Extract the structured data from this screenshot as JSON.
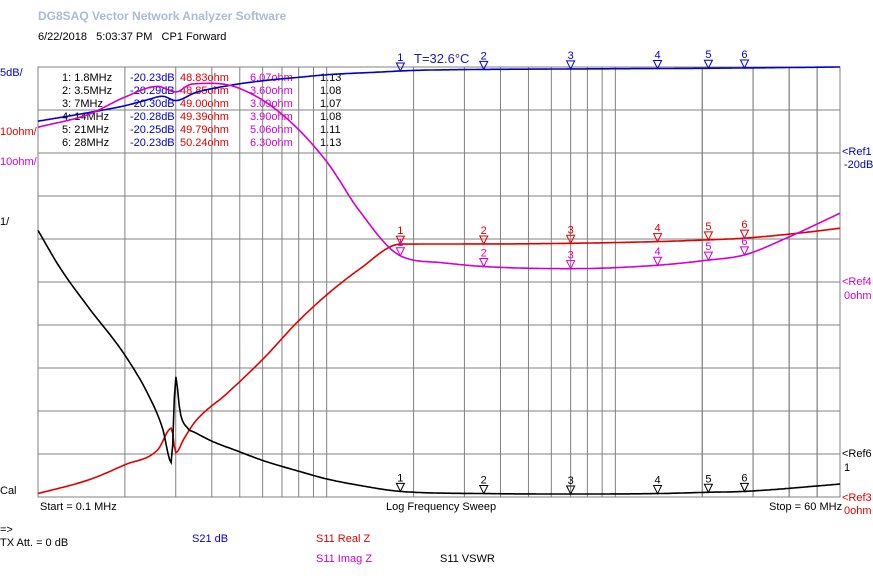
{
  "header": {
    "app_title": "DG8SAQ Vector Network Analyzer Software",
    "date": "6/22/2018",
    "time": "5:03:37 PM",
    "mode": "CP1 Forward",
    "temperature": "T=32.6°C"
  },
  "scale_labels": {
    "s21_scale": "5dB/",
    "real_scale": "10ohm/",
    "imag_scale": "10ohm/",
    "vswr_scale": "1/",
    "cal": "Cal"
  },
  "ref_labels": {
    "ref1": "<Ref1",
    "ref1_value": "-20dB",
    "ref4": "<Ref4",
    "ref4_value": "0ohm",
    "ref6": "<Ref6",
    "ref6_value": "1",
    "ref3": "<Ref3",
    "ref3_value": "0ohm"
  },
  "footer": {
    "start": "Start = 0.1 MHz",
    "sweep": "Log Frequency Sweep",
    "stop": "Stop = 60 MHz",
    "arrow": "=>",
    "tx_att": "TX Att.  = 0 dB",
    "legend_s21": "S21  dB",
    "legend_real": "S11  Real Z",
    "legend_imag": "S11  Imag Z",
    "legend_vswr": "S11  VSWR"
  },
  "colors": {
    "s21": "#0000c8",
    "real": "#e00000",
    "imag": "#d000d0",
    "vswr": "#000000",
    "grid": "#808080"
  },
  "markers": [
    {
      "label": "1: 1.8MHz",
      "s21": "-20.23dB",
      "real": "48.83ohm",
      "imag": "6.07ohm",
      "vswr": "1.13"
    },
    {
      "label": "2: 3.5MHz",
      "s21": "-20.29dB",
      "real": "48.85ohm",
      "imag": "3.60ohm",
      "vswr": "1.08"
    },
    {
      "label": "3: 7MHz",
      "s21": "-20.30dB",
      "real": "49.00ohm",
      "imag": "3.09ohm",
      "vswr": "1.07"
    },
    {
      "label": "4: 14MHz",
      "s21": "-20.28dB",
      "real": "49.39ohm",
      "imag": "3.90ohm",
      "vswr": "1.08"
    },
    {
      "label": "5: 21MHz",
      "s21": "-20.25dB",
      "real": "49.79ohm",
      "imag": "5.06ohm",
      "vswr": "1.11"
    },
    {
      "label": "6: 28MHz",
      "s21": "-20.23dB",
      "real": "50.24ohm",
      "imag": "6.30ohm",
      "vswr": "1.13"
    }
  ],
  "chart_data": {
    "type": "line",
    "x_scale": "log",
    "xlim": [
      0.1,
      60
    ],
    "marker_freqs": [
      1.8,
      3.5,
      7,
      14,
      21,
      28
    ],
    "marker_ids": [
      "1",
      "2",
      "3",
      "4",
      "5",
      "6"
    ],
    "series": [
      {
        "name": "S21  dB",
        "key": "s21",
        "ylim": [
          -70,
          -20
        ],
        "x": [
          0.1,
          0.15,
          0.2,
          0.24,
          0.27,
          0.3,
          0.35,
          0.45,
          0.6,
          0.8,
          1.0,
          1.5,
          2,
          3,
          5,
          10,
          20,
          30,
          60
        ],
        "y": [
          -26.3,
          -25.3,
          -24.5,
          -23.8,
          -23.4,
          -23.9,
          -23.0,
          -22.2,
          -21.6,
          -21.2,
          -20.9,
          -20.6,
          -20.4,
          -20.3,
          -20.25,
          -20.2,
          -20.15,
          -20.1,
          -20.0
        ]
      },
      {
        "name": "S11  Real Z",
        "key": "real",
        "ylim": [
          -10,
          90
        ],
        "x": [
          0.1,
          0.15,
          0.2,
          0.26,
          0.29,
          0.3,
          0.32,
          0.35,
          0.45,
          0.6,
          0.8,
          1.0,
          1.3,
          1.8,
          3.5,
          7,
          14,
          21,
          28,
          45,
          60
        ],
        "y": [
          -9.2,
          -6.0,
          -2.5,
          1.0,
          6.0,
          0.3,
          3.5,
          7.5,
          14.0,
          22.0,
          31.0,
          37.0,
          43.0,
          48.8,
          48.85,
          49.0,
          49.4,
          49.8,
          50.2,
          51.5,
          52.5
        ]
      },
      {
        "name": "S11  Imag Z",
        "key": "imag",
        "ylim": [
          -50,
          50
        ],
        "x": [
          0.1,
          0.15,
          0.2,
          0.26,
          0.3,
          0.34,
          0.4,
          0.5,
          0.7,
          1.0,
          1.3,
          1.8,
          2.5,
          3.5,
          7,
          14,
          21,
          28,
          40,
          60
        ],
        "y": [
          36.0,
          39.0,
          43.0,
          45.5,
          44.2,
          46.0,
          46.2,
          45.0,
          39.0,
          28.0,
          16.5,
          6.1,
          4.5,
          3.6,
          3.1,
          3.9,
          5.1,
          6.3,
          10.5,
          16.0
        ]
      },
      {
        "name": "S11  VSWR",
        "key": "vswr",
        "ylim": [
          1,
          11
        ],
        "x": [
          0.1,
          0.12,
          0.15,
          0.2,
          0.24,
          0.27,
          0.29,
          0.3,
          0.31,
          0.33,
          0.35,
          0.4,
          0.5,
          0.6,
          0.8,
          1.0,
          1.3,
          1.8,
          3.5,
          7,
          14,
          21,
          28,
          60
        ],
        "y": [
          7.2,
          6.3,
          5.4,
          4.3,
          3.4,
          2.6,
          1.8,
          3.8,
          3.0,
          2.6,
          2.5,
          2.3,
          2.05,
          1.85,
          1.6,
          1.42,
          1.27,
          1.13,
          1.08,
          1.07,
          1.08,
          1.11,
          1.13,
          1.3
        ]
      }
    ]
  }
}
